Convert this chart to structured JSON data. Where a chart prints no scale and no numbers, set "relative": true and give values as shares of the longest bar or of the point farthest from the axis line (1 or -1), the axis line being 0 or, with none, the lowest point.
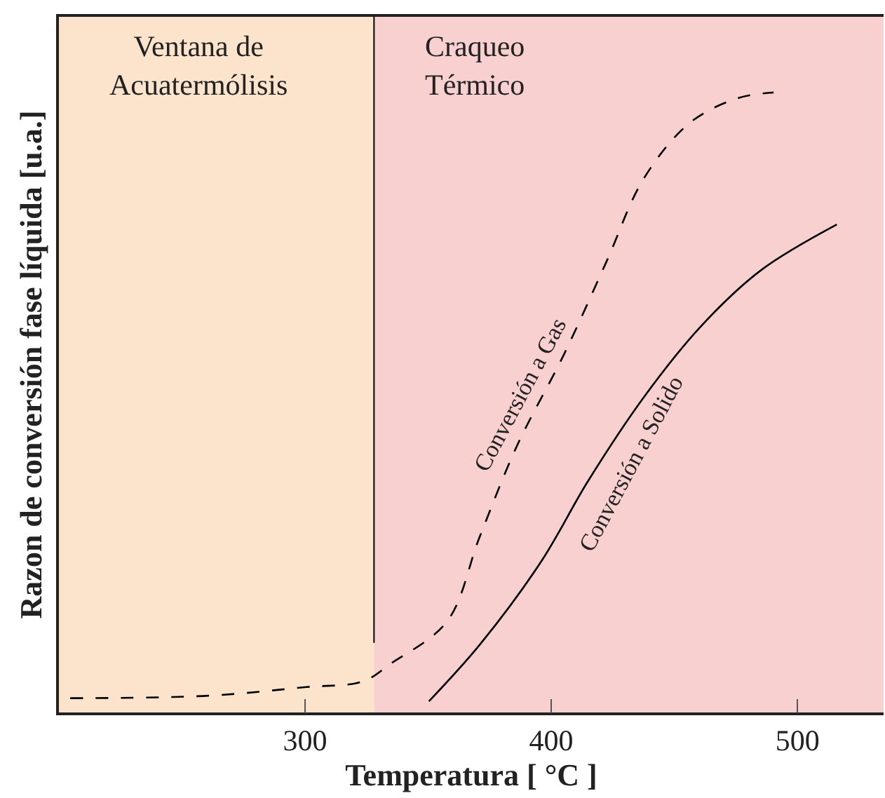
{
  "chart_data": {
    "type": "line",
    "relative": true,
    "xlabel": "Temperatura [ °C ]",
    "ylabel": "Razon de conversión fase líquida [u.a.]",
    "xlim": [
      200,
      535
    ],
    "xticks": [
      300,
      400,
      500
    ],
    "grid": false,
    "legend": false,
    "tick_labels": "x",
    "series": [
      {
        "name": "Conversión a Gas",
        "color": "#000000",
        "line_style": "dashed",
        "x": [
          204.6,
          260.6,
          300.6,
          323.4,
          334.9,
          357.7,
          370.9,
          386.3,
          405.1,
          422.3,
          437.7,
          456.6,
          476,
          490.3
        ],
        "values": [
          0.023,
          0.027,
          0.041,
          0.05,
          0.079,
          0.147,
          0.283,
          0.432,
          0.577,
          0.726,
          0.862,
          0.952,
          0.991,
          1
        ]
      },
      {
        "name": "Conversión a Solido",
        "color": "#000000",
        "line_style": "solid",
        "x": [
          350.3,
          370.9,
          396,
          414.9,
          437.7,
          460.6,
          485.1,
          516
        ],
        "values": [
          0.018,
          0.109,
          0.244,
          0.373,
          0.509,
          0.622,
          0.713,
          0.787
        ]
      }
    ],
    "bands": [
      {
        "axis": "x",
        "from": 200,
        "to": 328,
        "label": "Ventana de\nAcuatermólisis",
        "color": "#fbe3cc"
      },
      {
        "axis": "x",
        "from": 328,
        "to": 535,
        "label": "Craqueo\nTérmico",
        "color": "#f8d0cf"
      }
    ],
    "ref_lines": [
      {
        "axis": "x",
        "value": 328,
        "color": "#000000"
      }
    ]
  }
}
